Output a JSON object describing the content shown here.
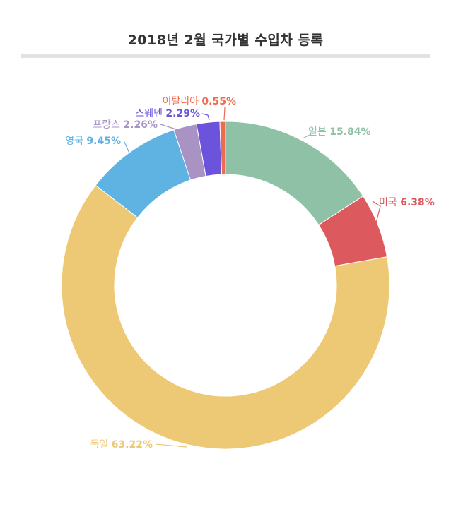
{
  "title": "2018년 2월 국가별 수입차 등록",
  "chart_data": {
    "type": "pie",
    "variant": "donut",
    "title": "2018년 2월 국가별 수입차 등록",
    "slices": [
      {
        "label": "일본",
        "value": 15.84,
        "value_label": "15.84%",
        "color": "#8fc1a6"
      },
      {
        "label": "미국",
        "value": 6.38,
        "value_label": "6.38%",
        "color": "#dc5a5d"
      },
      {
        "label": "독일",
        "value": 63.22,
        "value_label": "63.22%",
        "color": "#eec975"
      },
      {
        "label": "영국",
        "value": 9.45,
        "value_label": "9.45%",
        "color": "#5fb3e2"
      },
      {
        "label": "프랑스",
        "value": 2.26,
        "value_label": "2.26%",
        "color": "#a993c4"
      },
      {
        "label": "스웨덴",
        "value": 2.29,
        "value_label": "2.29%",
        "color": "#6b53dc"
      },
      {
        "label": "이탈리아",
        "value": 0.55,
        "value_label": "0.55%",
        "color": "#f06a4d"
      }
    ]
  }
}
